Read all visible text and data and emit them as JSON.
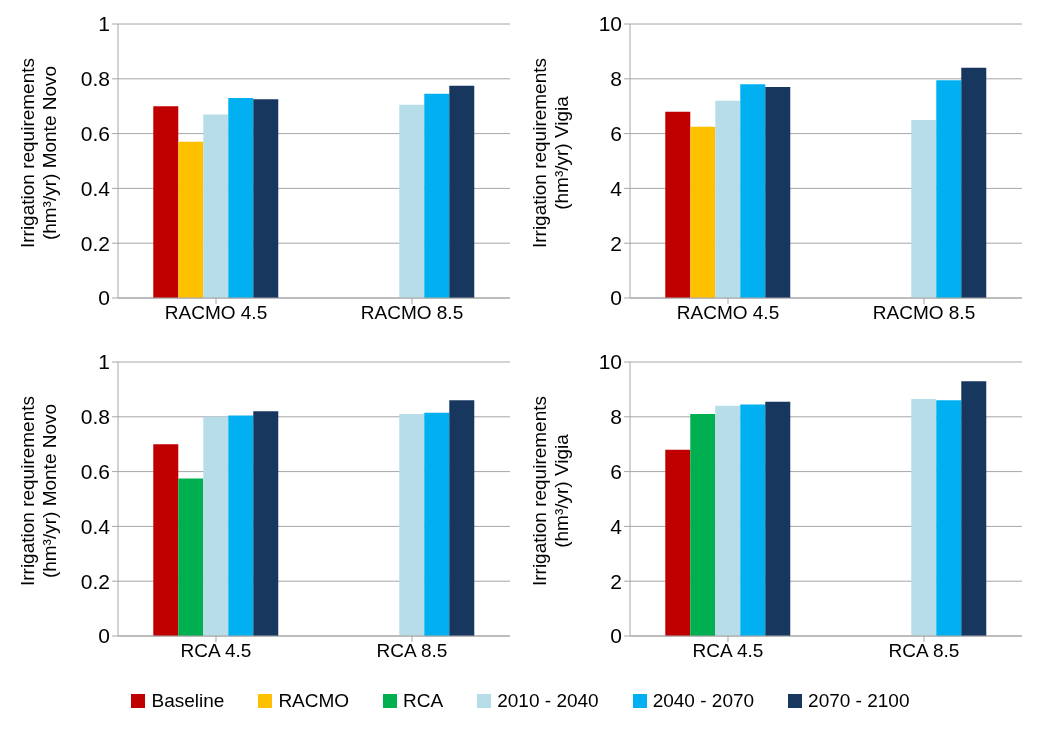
{
  "chart_data": [
    {
      "type": "bar",
      "ylabel": "Irrigation requirements (hm³/yr) Monte Novo",
      "categories": [
        "RACMO 4.5",
        "RACMO 8.5"
      ],
      "ylim": [
        0,
        1
      ],
      "yticks": [
        0,
        0.2,
        0.4,
        0.6,
        0.8,
        1
      ],
      "grid": "y",
      "legend": "bottom",
      "series": [
        {
          "name": "Baseline",
          "color": "#c00000",
          "values": [
            0.7,
            null
          ]
        },
        {
          "name": "RACMO",
          "color": "#ffc000",
          "values": [
            0.57,
            null
          ]
        },
        {
          "name": "2010 - 2040",
          "color": "#b7dde8",
          "values": [
            0.67,
            0.705
          ]
        },
        {
          "name": "2040 - 2070",
          "color": "#00b0f0",
          "values": [
            0.73,
            0.745
          ]
        },
        {
          "name": "2070 - 2100",
          "color": "#17375e",
          "values": [
            0.725,
            0.775
          ]
        }
      ]
    },
    {
      "type": "bar",
      "ylabel": "Irrigation requirements (hm³/yr) Vigia",
      "categories": [
        "RACMO 4.5",
        "RACMO 8.5"
      ],
      "ylim": [
        0,
        10
      ],
      "yticks": [
        0,
        2,
        4,
        6,
        8,
        10
      ],
      "grid": "y",
      "legend": "bottom",
      "series": [
        {
          "name": "Baseline",
          "color": "#c00000",
          "values": [
            6.8,
            null
          ]
        },
        {
          "name": "RACMO",
          "color": "#ffc000",
          "values": [
            6.25,
            null
          ]
        },
        {
          "name": "2010 - 2040",
          "color": "#b7dde8",
          "values": [
            7.2,
            6.5
          ]
        },
        {
          "name": "2040 - 2070",
          "color": "#00b0f0",
          "values": [
            7.8,
            7.95
          ]
        },
        {
          "name": "2070 - 2100",
          "color": "#17375e",
          "values": [
            7.7,
            8.4
          ]
        }
      ]
    },
    {
      "type": "bar",
      "ylabel": "Irrigation requirements (hm³/yr) Monte Novo",
      "categories": [
        "RCA 4.5",
        "RCA 8.5"
      ],
      "ylim": [
        0,
        1
      ],
      "yticks": [
        0,
        0.2,
        0.4,
        0.6,
        0.8,
        1
      ],
      "grid": "y",
      "legend": "bottom",
      "series": [
        {
          "name": "Baseline",
          "color": "#c00000",
          "values": [
            0.7,
            null
          ]
        },
        {
          "name": "RCA",
          "color": "#00b050",
          "values": [
            0.575,
            null
          ]
        },
        {
          "name": "2010 - 2040",
          "color": "#b7dde8",
          "values": [
            0.8,
            0.81
          ]
        },
        {
          "name": "2040 - 2070",
          "color": "#00b0f0",
          "values": [
            0.805,
            0.815
          ]
        },
        {
          "name": "2070 - 2100",
          "color": "#17375e",
          "values": [
            0.82,
            0.86
          ]
        }
      ]
    },
    {
      "type": "bar",
      "ylabel": "Irrigation requirements (hm³/yr) Vigia",
      "categories": [
        "RCA 4.5",
        "RCA 8.5"
      ],
      "ylim": [
        0,
        10
      ],
      "yticks": [
        0,
        2,
        4,
        6,
        8,
        10
      ],
      "grid": "y",
      "legend": "bottom",
      "series": [
        {
          "name": "Baseline",
          "color": "#c00000",
          "values": [
            6.8,
            null
          ]
        },
        {
          "name": "RCA",
          "color": "#00b050",
          "values": [
            8.1,
            null
          ]
        },
        {
          "name": "2010 - 2040",
          "color": "#b7dde8",
          "values": [
            8.4,
            8.65
          ]
        },
        {
          "name": "2040 - 2070",
          "color": "#00b0f0",
          "values": [
            8.45,
            8.6
          ]
        },
        {
          "name": "2070 - 2100",
          "color": "#17375e",
          "values": [
            8.55,
            9.3
          ]
        }
      ]
    }
  ]
}
